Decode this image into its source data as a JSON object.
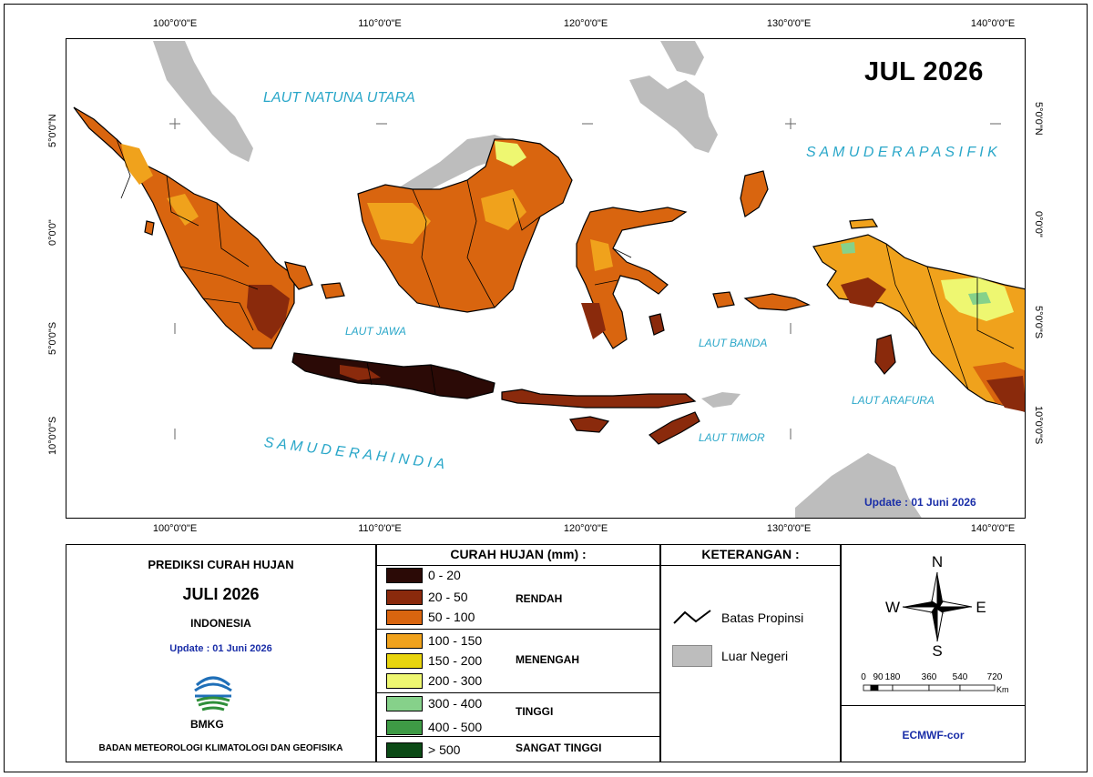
{
  "map": {
    "title_stamp": "JUL 2026",
    "update_text": "Update : 01 Juni  2026",
    "longitudes": [
      "100°0'0\"E",
      "110°0'0\"E",
      "120°0'0\"E",
      "130°0'0\"E",
      "140°0'0\"E"
    ],
    "latitudes": [
      "5°0'0\"N",
      "0°0'0\"",
      "5°0'0\"S",
      "10°0'0\"S"
    ],
    "seas": {
      "natuna": "LAUT NATUNA UTARA",
      "pasifik": "S A M U D E R A   P A S I F I K",
      "jawa": "LAUT JAWA",
      "banda": "LAUT BANDA",
      "arafura": "LAUT ARAFURA",
      "timor": "LAUT TIMOR",
      "hindia": "S A M U D E R A   H I N D I A"
    }
  },
  "info_panel": {
    "title": "PREDIKSI CURAH HUJAN",
    "period": "JULI 2026",
    "region": "INDONESIA",
    "update": "Update : 01 Juni  2026",
    "logo_text": "BMKG",
    "agency": "BADAN METEOROLOGI KLIMATOLOGI DAN GEOFISIKA"
  },
  "legend": {
    "header": "CURAH HUJAN (mm) :",
    "classes": [
      {
        "label": "0 - 20",
        "color": "#2b0a06"
      },
      {
        "label": "20 - 50",
        "color": "#8a2a0c"
      },
      {
        "label": "50 - 100",
        "color": "#d9650f"
      },
      {
        "label": "100 - 150",
        "color": "#f0a21c"
      },
      {
        "label": "150 - 200",
        "color": "#e8d40e"
      },
      {
        "label": "200 - 300",
        "color": "#eef771"
      },
      {
        "label": "300 - 400",
        "color": "#86d18a"
      },
      {
        "label": "400 - 500",
        "color": "#3e9a45"
      },
      {
        "label": "> 500",
        "color": "#0c4a16"
      }
    ],
    "groups": {
      "rendah": "RENDAH",
      "menengah": "MENENGAH",
      "tinggi": "TINGGI",
      "sangat_tinggi": "SANGAT TINGGI"
    }
  },
  "keterangan": {
    "header": "KETERANGAN :",
    "items": [
      {
        "label": "Batas Propinsi",
        "icon": "boundary-line-icon"
      },
      {
        "label": "Luar Negeri",
        "icon": "grey-box-icon",
        "color": "#bdbdbd"
      }
    ]
  },
  "compass": {
    "n": "N",
    "s": "S",
    "e": "E",
    "w": "W"
  },
  "scale_bar": {
    "ticks": [
      "0",
      "90",
      "180",
      "360",
      "540",
      "720"
    ],
    "unit": "Km"
  },
  "source": "ECMWF-cor"
}
